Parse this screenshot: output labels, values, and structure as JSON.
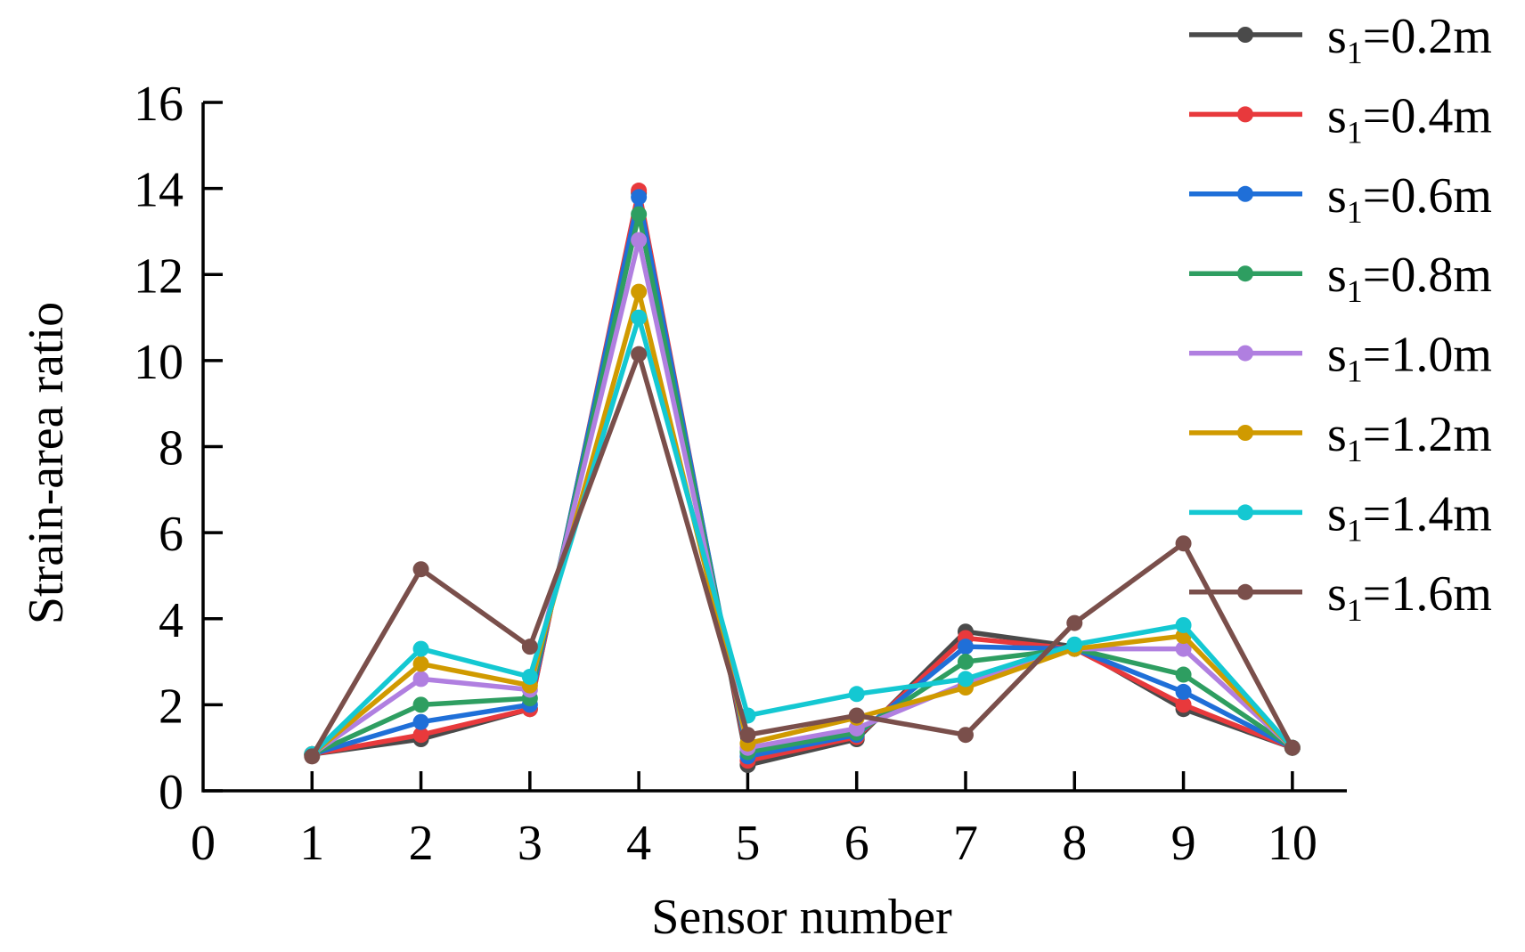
{
  "chart_data": {
    "type": "line",
    "xlabel": "Sensor number",
    "ylabel": "Strain-area ratio",
    "xlim": [
      0,
      10.5
    ],
    "ylim": [
      0,
      16
    ],
    "x_ticks": [
      0,
      1,
      2,
      3,
      4,
      5,
      6,
      7,
      8,
      9,
      10
    ],
    "y_ticks": [
      0,
      2,
      4,
      6,
      8,
      10,
      12,
      14,
      16
    ],
    "grid": false,
    "legend_position": "top-right, outside plot",
    "x": [
      1,
      2,
      3,
      4,
      5,
      6,
      7,
      8,
      9,
      10
    ],
    "series": [
      {
        "name_prefix": "s",
        "name_sub": "1",
        "name_suffix": "=0.2m",
        "color": "#4a4a4a",
        "values": [
          0.85,
          1.2,
          1.9,
          13.9,
          0.6,
          1.2,
          3.7,
          3.35,
          1.9,
          1.0
        ]
      },
      {
        "name_prefix": "s",
        "name_sub": "1",
        "name_suffix": "=0.4m",
        "color": "#e8393c",
        "values": [
          0.85,
          1.3,
          1.9,
          13.95,
          0.7,
          1.25,
          3.55,
          3.3,
          2.0,
          1.0
        ]
      },
      {
        "name_prefix": "s",
        "name_sub": "1",
        "name_suffix": "=0.6m",
        "color": "#1f6fd8",
        "values": [
          0.85,
          1.6,
          2.0,
          13.8,
          0.8,
          1.3,
          3.35,
          3.3,
          2.3,
          1.0
        ]
      },
      {
        "name_prefix": "s",
        "name_sub": "1",
        "name_suffix": "=0.8m",
        "color": "#2e9e61",
        "values": [
          0.85,
          2.0,
          2.15,
          13.4,
          0.9,
          1.35,
          3.0,
          3.3,
          2.7,
          1.0
        ]
      },
      {
        "name_prefix": "s",
        "name_sub": "1",
        "name_suffix": "=1.0m",
        "color": "#b07fe0",
        "values": [
          0.85,
          2.6,
          2.35,
          12.8,
          1.0,
          1.45,
          2.5,
          3.3,
          3.3,
          1.0
        ]
      },
      {
        "name_prefix": "s",
        "name_sub": "1",
        "name_suffix": "=1.2m",
        "color": "#d09a00",
        "values": [
          0.85,
          2.95,
          2.45,
          11.6,
          1.1,
          1.7,
          2.4,
          3.3,
          3.6,
          1.0
        ]
      },
      {
        "name_prefix": "s",
        "name_sub": "1",
        "name_suffix": "=1.4m",
        "color": "#14c8d2",
        "values": [
          0.85,
          3.3,
          2.65,
          11.0,
          1.75,
          2.25,
          2.6,
          3.4,
          3.85,
          1.0
        ]
      },
      {
        "name_prefix": "s",
        "name_sub": "1",
        "name_suffix": "=1.6m",
        "color": "#7a4f4b",
        "values": [
          0.8,
          5.15,
          3.35,
          10.15,
          1.3,
          1.75,
          1.3,
          3.9,
          5.75,
          1.0
        ]
      }
    ]
  }
}
